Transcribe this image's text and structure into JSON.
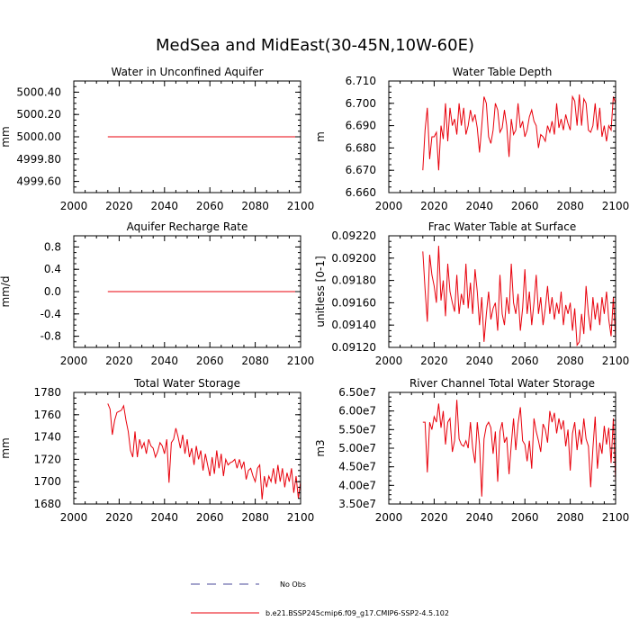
{
  "title": "MedSea and MidEast(30-45N,10W-60E)",
  "legend": {
    "obs_label": "No Obs",
    "obs_color": "#4b4b9b",
    "model_label": "b.e21.BSSP245cmip6.f09_g17.CMIP6-SSP2-4.5.102",
    "model_color": "#e8000b"
  },
  "chart_data": [
    {
      "type": "line",
      "title": "Water in Unconfined Aquifer",
      "ylabel": "mm",
      "xlim": [
        2000,
        2100
      ],
      "ylim": [
        4999.5,
        5000.5
      ],
      "xticks": [
        "2000",
        "2020",
        "2040",
        "2060",
        "2080",
        "2100"
      ],
      "yticks": [
        "4999.60",
        "4999.80",
        "5000.00",
        "5000.20",
        "5000.40"
      ],
      "x_start": 2015,
      "series": [
        {
          "name": "b.e21.BSSP245cmip6.f09_g17.CMIP6-SSP2-4.5.102",
          "values": [
            5000,
            5000,
            5000,
            5000,
            5000,
            5000,
            5000,
            5000,
            5000,
            5000,
            5000,
            5000,
            5000,
            5000,
            5000,
            5000,
            5000,
            5000,
            5000,
            5000,
            5000,
            5000,
            5000,
            5000,
            5000,
            5000,
            5000,
            5000,
            5000,
            5000,
            5000,
            5000,
            5000,
            5000,
            5000,
            5000,
            5000,
            5000,
            5000,
            5000,
            5000,
            5000,
            5000,
            5000,
            5000,
            5000,
            5000,
            5000,
            5000,
            5000,
            5000,
            5000,
            5000,
            5000,
            5000,
            5000,
            5000,
            5000,
            5000,
            5000,
            5000,
            5000,
            5000,
            5000,
            5000,
            5000,
            5000,
            5000,
            5000,
            5000,
            5000,
            5000,
            5000,
            5000,
            5000,
            5000,
            5000,
            5000,
            5000,
            5000,
            5000,
            5000,
            5000,
            5000,
            5000,
            5000
          ]
        }
      ]
    },
    {
      "type": "line",
      "title": "Water Table Depth",
      "ylabel": "m",
      "xlim": [
        2000,
        2100
      ],
      "ylim": [
        6.66,
        6.71
      ],
      "xticks": [
        "2000",
        "2020",
        "2040",
        "2060",
        "2080",
        "2100"
      ],
      "yticks": [
        "6.660",
        "6.670",
        "6.680",
        "6.690",
        "6.700",
        "6.710"
      ],
      "x_start": 2015,
      "series": [
        {
          "name": "b.e21.BSSP245cmip6.f09_g17.CMIP6-SSP2-4.5.102",
          "values": [
            6.67,
            6.688,
            6.698,
            6.675,
            6.685,
            6.685,
            6.687,
            6.67,
            6.69,
            6.684,
            6.7,
            6.683,
            6.698,
            6.69,
            6.693,
            6.686,
            6.7,
            6.69,
            6.698,
            6.686,
            6.69,
            6.697,
            6.692,
            6.695,
            6.689,
            6.678,
            6.69,
            6.703,
            6.7,
            6.685,
            6.682,
            6.688,
            6.7,
            6.697,
            6.687,
            6.689,
            6.697,
            6.69,
            6.676,
            6.693,
            6.686,
            6.688,
            6.7,
            6.689,
            6.692,
            6.685,
            6.688,
            6.694,
            6.697,
            6.692,
            6.69,
            6.68,
            6.686,
            6.685,
            6.683,
            6.69,
            6.687,
            6.692,
            6.686,
            6.7,
            6.689,
            6.693,
            6.688,
            6.695,
            6.691,
            6.688,
            6.703,
            6.701,
            6.69,
            6.704,
            6.69,
            6.702,
            6.7,
            6.688,
            6.687,
            6.69,
            6.7,
            6.688,
            6.698,
            6.685,
            6.69,
            6.683,
            6.69,
            6.688,
            6.703,
            6.7
          ]
        }
      ]
    },
    {
      "type": "line",
      "title": "Aquifer Recharge Rate",
      "ylabel": "mm/d",
      "xlim": [
        2000,
        2100
      ],
      "ylim": [
        -1,
        1
      ],
      "xticks": [
        "2000",
        "2020",
        "2040",
        "2060",
        "2080",
        "2100"
      ],
      "yticks": [
        "-0.8",
        "-0.4",
        "0.0",
        "0.4",
        "0.8"
      ],
      "x_start": 2015,
      "series": [
        {
          "name": "b.e21.BSSP245cmip6.f09_g17.CMIP6-SSP2-4.5.102",
          "values": [
            0,
            0,
            0,
            0,
            0,
            0,
            0,
            0,
            0,
            0,
            0,
            0,
            0,
            0,
            0,
            0,
            0,
            0,
            0,
            0,
            0,
            0,
            0,
            0,
            0,
            0,
            0,
            0,
            0,
            0,
            0,
            0,
            0,
            0,
            0,
            0,
            0,
            0,
            0,
            0,
            0,
            0,
            0,
            0,
            0,
            0,
            0,
            0,
            0,
            0,
            0,
            0,
            0,
            0,
            0,
            0,
            0,
            0,
            0,
            0,
            0,
            0,
            0,
            0,
            0,
            0,
            0,
            0,
            0,
            0,
            0,
            0,
            0,
            0,
            0,
            0,
            0,
            0,
            0,
            0,
            0,
            0,
            0,
            0,
            0,
            0
          ]
        }
      ]
    },
    {
      "type": "line",
      "title": "Frac Water Table at Surface",
      "ylabel": "unitless [0-1]",
      "xlim": [
        2000,
        2100
      ],
      "ylim": [
        0.0912,
        0.0922
      ],
      "xticks": [
        "2000",
        "2020",
        "2040",
        "2060",
        "2080",
        "2100"
      ],
      "yticks": [
        "0.09120",
        "0.09140",
        "0.09160",
        "0.09180",
        "0.09200",
        "0.09220"
      ],
      "x_start": 2015,
      "series": [
        {
          "name": "b.e21.BSSP245cmip6.f09_g17.CMIP6-SSP2-4.5.102",
          "values": [
            0.09206,
            0.09172,
            0.09143,
            0.09203,
            0.09185,
            0.09175,
            0.0916,
            0.09211,
            0.09162,
            0.0918,
            0.09148,
            0.09195,
            0.0917,
            0.0916,
            0.09152,
            0.09185,
            0.0915,
            0.09168,
            0.09158,
            0.09195,
            0.09155,
            0.09178,
            0.0915,
            0.0919,
            0.0917,
            0.0914,
            0.09165,
            0.09125,
            0.0915,
            0.0917,
            0.09145,
            0.09155,
            0.0916,
            0.09135,
            0.09185,
            0.0915,
            0.0914,
            0.09165,
            0.0915,
            0.09195,
            0.0916,
            0.0915,
            0.09168,
            0.09135,
            0.09155,
            0.0919,
            0.0915,
            0.0917,
            0.0914,
            0.0916,
            0.09185,
            0.0915,
            0.09165,
            0.0914,
            0.09155,
            0.09175,
            0.0915,
            0.09165,
            0.09145,
            0.0916,
            0.0915,
            0.0917,
            0.0914,
            0.09158,
            0.0915,
            0.0916,
            0.09135,
            0.09155,
            0.09122,
            0.09125,
            0.0915,
            0.09132,
            0.09175,
            0.0915,
            0.09135,
            0.09165,
            0.09145,
            0.0916,
            0.0914,
            0.09165,
            0.0915,
            0.0917,
            0.09145,
            0.0913,
            0.09165,
            0.09128
          ]
        }
      ]
    },
    {
      "type": "line",
      "title": "Total Water Storage",
      "ylabel": "mm",
      "xlim": [
        2000,
        2100
      ],
      "ylim": [
        1680,
        1780
      ],
      "xticks": [
        "2000",
        "2020",
        "2040",
        "2060",
        "2080",
        "2100"
      ],
      "yticks": [
        "1680",
        "1700",
        "1720",
        "1740",
        "1760",
        "1780"
      ],
      "x_start": 2015,
      "series": [
        {
          "name": "b.e21.BSSP245cmip6.f09_g17.CMIP6-SSP2-4.5.102",
          "values": [
            1770,
            1765,
            1742,
            1755,
            1762,
            1763,
            1764,
            1768,
            1755,
            1745,
            1728,
            1722,
            1745,
            1722,
            1738,
            1730,
            1735,
            1725,
            1738,
            1732,
            1730,
            1722,
            1727,
            1735,
            1732,
            1725,
            1738,
            1699,
            1735,
            1738,
            1748,
            1740,
            1730,
            1742,
            1725,
            1738,
            1722,
            1730,
            1715,
            1732,
            1720,
            1728,
            1710,
            1725,
            1715,
            1705,
            1722,
            1707,
            1728,
            1712,
            1725,
            1705,
            1720,
            1715,
            1717,
            1718,
            1720,
            1712,
            1720,
            1712,
            1718,
            1702,
            1710,
            1712,
            1705,
            1700,
            1712,
            1715,
            1684,
            1705,
            1695,
            1705,
            1700,
            1712,
            1698,
            1715,
            1700,
            1712,
            1695,
            1708,
            1700,
            1712,
            1690,
            1705,
            1685,
            1700
          ]
        }
      ]
    },
    {
      "type": "line",
      "title": "River Channel Total Water Storage",
      "ylabel": "m3",
      "xlim": [
        2000,
        2100
      ],
      "ylim": [
        35000000,
        65000000
      ],
      "xticks": [
        "2000",
        "2020",
        "2040",
        "2060",
        "2080",
        "2100"
      ],
      "yticks": [
        "3.50e7",
        "4.00e7",
        "4.50e7",
        "5.00e7",
        "5.50e7",
        "6.00e7",
        "6.50e7"
      ],
      "x_start": 2015,
      "series": [
        {
          "name": "b.e21.BSSP245cmip6.f09_g17.CMIP6-SSP2-4.5.102",
          "values": [
            57000000,
            57000000,
            43500000,
            57000000,
            55000000,
            58500000,
            57000000,
            62000000,
            55500000,
            60000000,
            51000000,
            57000000,
            58000000,
            49000000,
            52000000,
            63000000,
            52500000,
            51000000,
            50500000,
            52000000,
            50000000,
            57000000,
            50000000,
            46000000,
            57000000,
            51000000,
            37000000,
            52500000,
            56000000,
            57000000,
            55500000,
            48500000,
            54500000,
            41000000,
            54500000,
            57000000,
            51500000,
            53000000,
            43000000,
            51000000,
            58000000,
            49500000,
            56500000,
            61000000,
            52000000,
            51000000,
            46500000,
            52000000,
            44500000,
            58000000,
            54500000,
            52000000,
            49000000,
            56500000,
            55000000,
            51500000,
            60000000,
            57000000,
            59500000,
            54000000,
            58000000,
            55000000,
            57500000,
            50500000,
            55000000,
            44000000,
            54000000,
            57000000,
            49500000,
            55000000,
            51000000,
            58000000,
            52500000,
            50500000,
            39500000,
            50000000,
            58500000,
            44500000,
            51500000,
            48500000,
            56000000,
            51000000,
            55500000,
            46000000,
            58000000,
            41000000
          ]
        }
      ]
    }
  ]
}
